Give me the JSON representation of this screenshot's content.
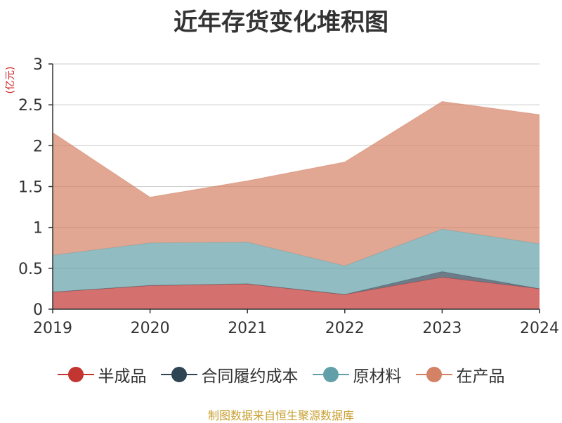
{
  "chart_data": {
    "type": "area",
    "stacked": true,
    "title": "近年存货变化堆积图",
    "unit_label": "(亿元)",
    "x": [
      "2019",
      "2020",
      "2021",
      "2022",
      "2023",
      "2024"
    ],
    "y_ticks": [
      "0",
      "0.5",
      "1",
      "1.5",
      "2",
      "2.5",
      "3"
    ],
    "ylim": [
      0,
      3
    ],
    "grid": true,
    "legend_position": "bottom",
    "series": [
      {
        "name": "半成品",
        "color": "#c23531",
        "values": [
          0.21,
          0.29,
          0.31,
          0.18,
          0.39,
          0.25
        ]
      },
      {
        "name": "合同履约成本",
        "color": "#2f4554",
        "values": [
          0.0,
          0.0,
          0.0,
          0.0,
          0.07,
          0.0
        ]
      },
      {
        "name": "原材料",
        "color": "#61a0a8",
        "values": [
          0.45,
          0.52,
          0.51,
          0.35,
          0.52,
          0.55
        ]
      },
      {
        "name": "在产品",
        "color": "#d48265",
        "values": [
          1.5,
          0.56,
          0.75,
          1.27,
          1.56,
          1.58
        ]
      }
    ]
  },
  "source_text": "制图数据来自恒生聚源数据库"
}
